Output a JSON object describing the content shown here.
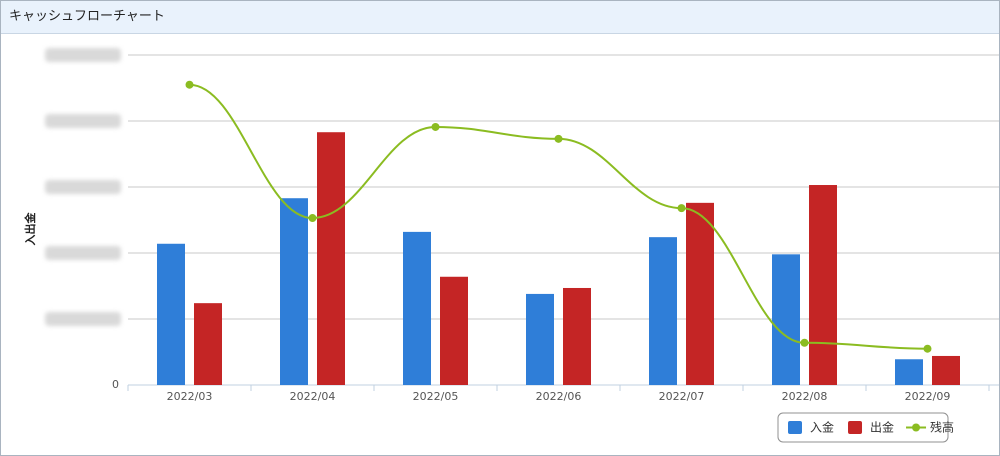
{
  "chart_data": {
    "type": "bar",
    "title": "キャッシュフローチャート",
    "y_label": "入出金",
    "categories": [
      "2022/03",
      "2022/04",
      "2022/05",
      "2022/06",
      "2022/07",
      "2022/08",
      "2022/09"
    ],
    "series": [
      {
        "name": "入金",
        "color": "#2f7ed8",
        "values": [
          2.14,
          2.83,
          2.32,
          1.38,
          2.24,
          1.98,
          0.39
        ]
      },
      {
        "name": "出金",
        "color": "#c42525",
        "values": [
          1.24,
          3.83,
          1.64,
          1.47,
          2.76,
          3.03,
          0.44
        ]
      },
      {
        "name": "残高",
        "color": "#8bbc21",
        "type": "line",
        "values": [
          4.55,
          2.53,
          3.91,
          3.73,
          2.68,
          0.64,
          0.55
        ]
      }
    ],
    "ylim": [
      0,
      5.2
    ],
    "yticks": [
      0,
      {
        "value": 1,
        "label": null
      },
      {
        "value": 2,
        "label": null
      },
      {
        "value": 3,
        "label": null
      },
      {
        "value": 4,
        "label": null
      },
      {
        "value": 5,
        "label": null
      }
    ],
    "grid": true,
    "legend": "bottom-right"
  }
}
